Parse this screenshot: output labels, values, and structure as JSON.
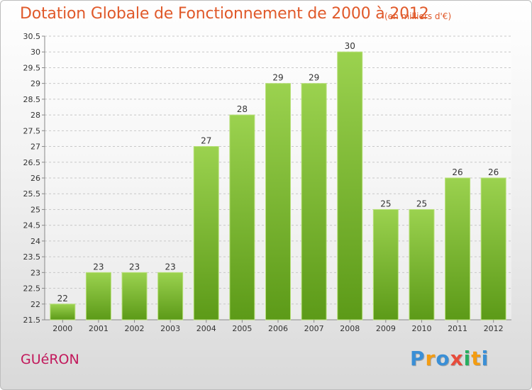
{
  "title": "Dotation Globale de Fonctionnement de 2000 à 2012",
  "subtitle": "(en milliers d'€)",
  "commune": "GUéRON",
  "logo_text": "Proxiti",
  "colors": {
    "title": "#e0592a",
    "commune": "#c2185b",
    "bar_top": "#9bd24f",
    "bar_bottom": "#5c9a18",
    "grid": "#c8c8c8"
  },
  "chart_data": {
    "type": "bar",
    "title": "Dotation Globale de Fonctionnement de 2000 à 2012",
    "subtitle": "(en milliers d'€)",
    "categories": [
      "2000",
      "2001",
      "2002",
      "2003",
      "2004",
      "2005",
      "2006",
      "2007",
      "2008",
      "2009",
      "2010",
      "2011",
      "2012"
    ],
    "values": [
      22,
      23,
      23,
      23,
      27,
      28,
      29,
      29,
      30,
      25,
      25,
      26,
      26
    ],
    "data_labels": [
      "22",
      "23",
      "23",
      "23",
      "27",
      "28",
      "29",
      "29",
      "30",
      "25",
      "25",
      "26",
      "26"
    ],
    "ylim": [
      21.5,
      30.5
    ],
    "yticks": [
      "21.5",
      "22",
      "22.5",
      "23",
      "23.5",
      "24",
      "24.5",
      "25",
      "25.5",
      "26",
      "26.5",
      "27",
      "27.5",
      "28",
      "28.5",
      "29",
      "29.5",
      "30",
      "30.5"
    ],
    "grid": true,
    "xlabel": "",
    "ylabel": ""
  }
}
